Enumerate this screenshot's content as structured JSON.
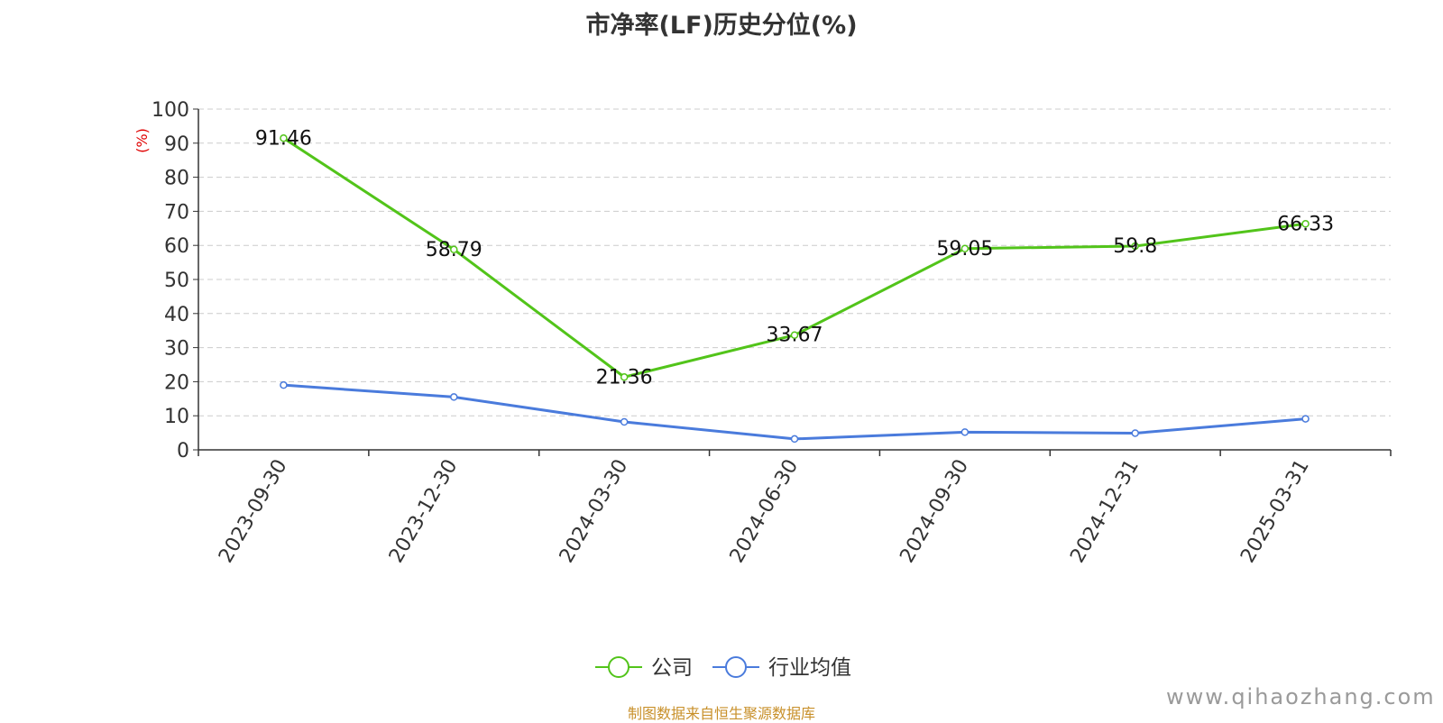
{
  "title": "市净率(LF)历史分位(%)",
  "source": "制图数据来自恒生聚源数据库",
  "watermark": "www.qihaozhang.com",
  "chart_data": {
    "type": "line",
    "title": "市净率(LF)历史分位(%)",
    "ylabel": "(%)",
    "xlabel": "",
    "ylim": [
      0,
      100
    ],
    "yticks": [
      0,
      10,
      20,
      30,
      40,
      50,
      60,
      70,
      80,
      90,
      100
    ],
    "categories": [
      "2023-09-30",
      "2023-12-30",
      "2024-03-30",
      "2024-06-30",
      "2024-09-30",
      "2024-12-31",
      "2025-03-31"
    ],
    "series": [
      {
        "name": "公司",
        "color": "#52c41a",
        "values": [
          91.46,
          58.79,
          21.36,
          33.67,
          59.05,
          59.8,
          66.33
        ],
        "labels": [
          "91.46",
          "58.79",
          "21.36",
          "33.67",
          "59.05",
          "59.8",
          "66.33"
        ]
      },
      {
        "name": "行业均值",
        "color": "#4a7bdc",
        "values": [
          19.0,
          15.5,
          8.2,
          3.2,
          5.2,
          4.9,
          9.1
        ]
      }
    ],
    "grid": true,
    "legend_position": "bottom-center",
    "colors": {
      "axis": "#333333",
      "grid": "#cccccc",
      "ylabel": "#e00000"
    }
  }
}
